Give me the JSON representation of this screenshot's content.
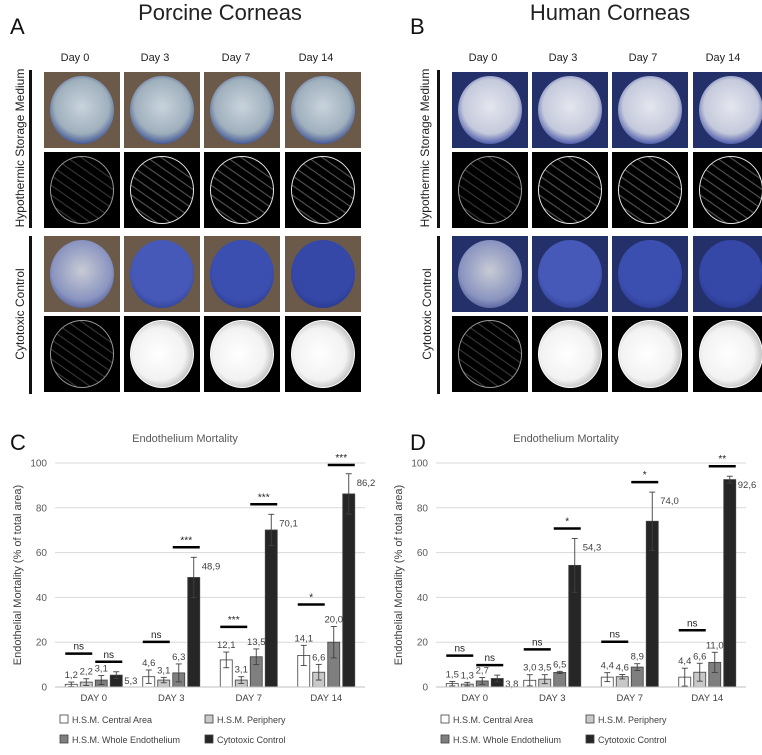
{
  "panels": {
    "A": {
      "letter": "A",
      "title": "Porcine Corneas"
    },
    "B": {
      "letter": "B",
      "title": "Human Corneas"
    },
    "C": {
      "letter": "C"
    },
    "D": {
      "letter": "D"
    }
  },
  "days": [
    "Day 0",
    "Day 3",
    "Day 7",
    "Day 14"
  ],
  "row_labels": [
    "Hypothermic Storage Medium",
    "Cytotoxic Control"
  ],
  "colors": {
    "hsm_central": "#ffffff",
    "hsm_periphery": "#c8c8c8",
    "hsm_whole": "#7f7f7f",
    "cytotoxic": "#262626",
    "stain_blue": "#3b4fb0"
  },
  "legend": [
    "H.S.M. Central Area",
    "H.S.M. Periphery",
    "H.S.M. Whole Endothelium",
    "Cytotoxic Control"
  ],
  "chart_data": [
    {
      "panel": "C",
      "type": "bar",
      "title": "Endothelium Mortality",
      "ylabel": "Endothelial Mortality (% of total area)",
      "xlabel": "",
      "categories": [
        "DAY 0",
        "DAY 3",
        "DAY 7",
        "DAY 14"
      ],
      "ylim": [
        0,
        100
      ],
      "yticks": [
        0,
        20,
        40,
        60,
        80,
        100
      ],
      "grid": true,
      "legend_position": "bottom",
      "series": [
        {
          "name": "H.S.M. Central Area",
          "values": [
            1.2,
            4.6,
            12.1,
            14.1
          ],
          "labels": [
            "1,2",
            "4,6",
            "12,1",
            "14,1"
          ],
          "errors": [
            1.0,
            3.0,
            3.5,
            4.5
          ]
        },
        {
          "name": "H.S.M. Periphery",
          "values": [
            2.2,
            3.1,
            3.1,
            6.6
          ],
          "labels": [
            "2,2",
            "3,1",
            "3,1",
            "6,6"
          ],
          "errors": [
            1.5,
            1.2,
            1.5,
            3.5
          ]
        },
        {
          "name": "H.S.M. Whole Endothelium",
          "values": [
            3.1,
            6.3,
            13.5,
            20.0
          ],
          "labels": [
            "3,1",
            "6,3",
            "13,5",
            "20,0"
          ],
          "errors": [
            2.0,
            4.0,
            3.5,
            7.0
          ]
        },
        {
          "name": "Cytotoxic Control",
          "values": [
            5.3,
            48.9,
            70.1,
            86.2
          ],
          "labels": [
            "5,3",
            "48,9",
            "70,1",
            "86,2"
          ],
          "errors": [
            1.5,
            9.0,
            7.0,
            9.0
          ]
        }
      ],
      "significance": [
        {
          "category": "DAY 0",
          "pairs": [
            "ns",
            "ns"
          ]
        },
        {
          "category": "DAY 3",
          "pairs": [
            "ns",
            "***"
          ]
        },
        {
          "category": "DAY 7",
          "pairs": [
            "***",
            "***"
          ]
        },
        {
          "category": "DAY 14",
          "pairs": [
            "*",
            "***"
          ]
        }
      ]
    },
    {
      "panel": "D",
      "type": "bar",
      "title": "Endothelium Mortality",
      "ylabel": "Endothelial Mortality (% of total area)",
      "xlabel": "",
      "categories": [
        "DAY 0",
        "DAY 3",
        "DAY 7",
        "DAY 14"
      ],
      "ylim": [
        0,
        100
      ],
      "yticks": [
        0,
        20,
        40,
        60,
        80,
        100
      ],
      "grid": true,
      "legend_position": "bottom",
      "series": [
        {
          "name": "H.S.M. Central Area",
          "values": [
            1.5,
            3.0,
            4.4,
            4.4
          ],
          "labels": [
            "1,5",
            "3,0",
            "4,4",
            "4,4"
          ],
          "errors": [
            1.0,
            2.5,
            2.0,
            4.0
          ]
        },
        {
          "name": "H.S.M. Periphery",
          "values": [
            1.3,
            3.5,
            4.6,
            6.6
          ],
          "labels": [
            "1,3",
            "3,5",
            "4,6",
            "6,6"
          ],
          "errors": [
            0.8,
            2.0,
            1.0,
            4.0
          ]
        },
        {
          "name": "H.S.M. Whole Endothelium",
          "values": [
            2.7,
            6.5,
            8.9,
            11.0
          ],
          "labels": [
            "2,7",
            "6,5",
            "8,9",
            "11,0"
          ],
          "errors": [
            1.5,
            0.5,
            1.5,
            4.5
          ]
        },
        {
          "name": "Cytotoxic Control",
          "values": [
            3.8,
            54.3,
            74.0,
            92.6
          ],
          "labels": [
            "3,8",
            "54,3",
            "74,0",
            "92,6"
          ],
          "errors": [
            1.5,
            12.0,
            13.0,
            1.5
          ]
        }
      ],
      "significance": [
        {
          "category": "DAY 0",
          "pairs": [
            "ns",
            "ns"
          ]
        },
        {
          "category": "DAY 3",
          "pairs": [
            "ns",
            "*"
          ]
        },
        {
          "category": "DAY 7",
          "pairs": [
            "ns",
            "*"
          ]
        },
        {
          "category": "DAY 14",
          "pairs": [
            "ns",
            "**"
          ]
        }
      ]
    }
  ]
}
